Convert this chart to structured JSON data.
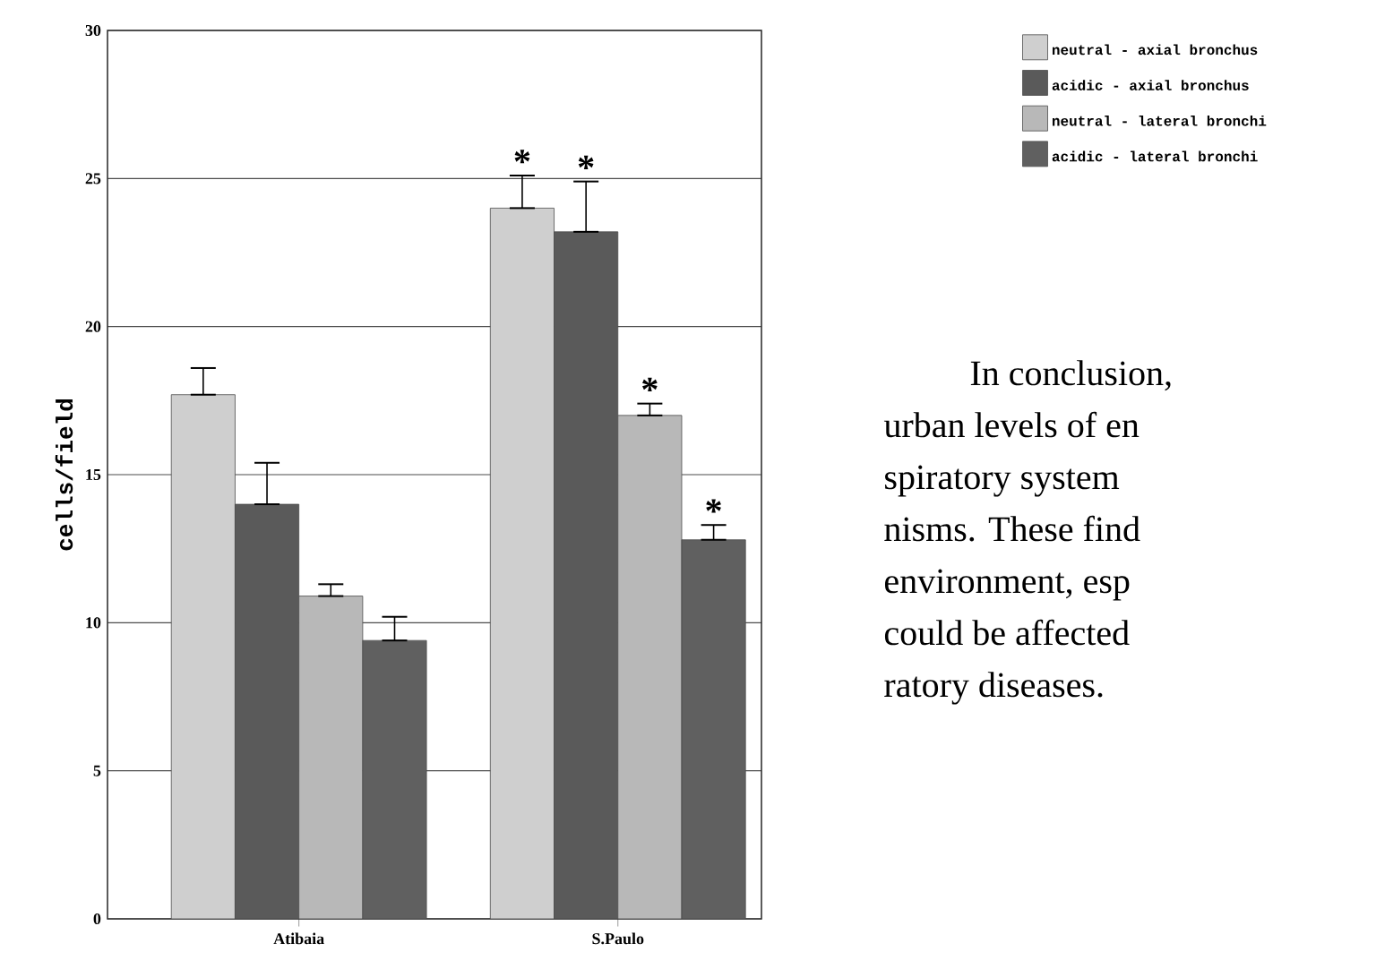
{
  "chart_data": {
    "type": "bar",
    "ylabel": "cells/field",
    "categories": [
      "Atibaia",
      "S.Paulo"
    ],
    "series": [
      {
        "name": "neutral - axial bronchus",
        "color": "#cfcfcf",
        "values": [
          17.7,
          24.0
        ],
        "errors": [
          [
            17.7,
            18.6
          ],
          [
            24.0,
            25.1
          ]
        ]
      },
      {
        "name": "acidic -  axial bronchus",
        "color": "#5a5a5a",
        "values": [
          14.0,
          23.2
        ],
        "errors": [
          [
            14.0,
            15.4
          ],
          [
            23.2,
            24.9
          ]
        ]
      },
      {
        "name": "neutral - lateral bronchi",
        "color": "#b8b8b8",
        "values": [
          10.9,
          17.0
        ],
        "errors": [
          [
            10.9,
            11.3
          ],
          [
            17.0,
            17.4
          ]
        ]
      },
      {
        "name": "acidic -  lateral bronchi",
        "color": "#606060",
        "values": [
          9.4,
          12.8
        ],
        "errors": [
          [
            9.4,
            10.2
          ],
          [
            12.8,
            13.3
          ]
        ]
      }
    ],
    "ylim": [
      0,
      30
    ],
    "yticks": [
      0,
      5,
      10,
      15,
      20,
      25,
      30
    ],
    "grid": "y",
    "legend": "top right",
    "annotations": [
      "*",
      "*",
      "*",
      "*",
      "In conclusion,",
      "urban levels of en",
      "spiratory system",
      "nisms. These find",
      "environment, esp",
      "could be affected",
      "ratory diseases."
    ]
  }
}
